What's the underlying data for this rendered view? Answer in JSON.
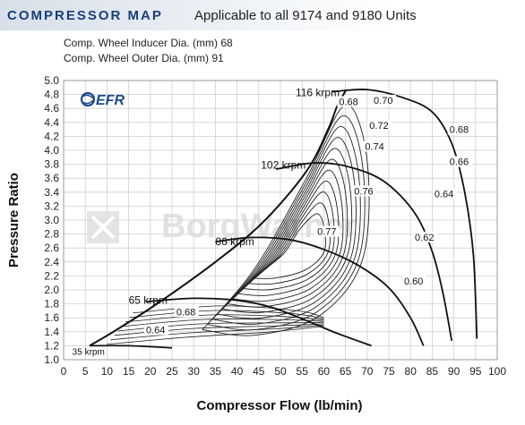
{
  "header": {
    "title": "COMPRESSOR MAP",
    "applicability": "Applicable to all 9174 and 9180 Units"
  },
  "specs": [
    "Comp. Wheel Inducer Dia. (mm) 68",
    "Comp. Wheel Outer Dia. (mm) 91"
  ],
  "logo_text": "EFR",
  "watermark_text": "BorgWarner",
  "colors": {
    "brand": "#1a3f7a",
    "line": "#111111",
    "grid": "#cfcfcf",
    "logo": "#1f4a8c"
  },
  "chart_data": {
    "type": "line",
    "title": "",
    "xlabel": "Compressor Flow (lb/min)",
    "ylabel": "Pressure Ratio",
    "xlim": [
      0,
      100
    ],
    "ylim": [
      1.0,
      5.0
    ],
    "xticks": [
      "0",
      "5",
      "10",
      "15",
      "20",
      "25",
      "30",
      "35",
      "40",
      "45",
      "50",
      "55",
      "60",
      "65",
      "70",
      "75",
      "80",
      "85",
      "90",
      "95",
      "100"
    ],
    "yticks": [
      "1.0",
      "1.2",
      "1.4",
      "1.6",
      "1.8",
      "2.0",
      "2.2",
      "2.4",
      "2.6",
      "2.8",
      "3.0",
      "3.2",
      "3.4",
      "3.6",
      "3.8",
      "4.0",
      "4.2",
      "4.4",
      "4.6",
      "4.8",
      "5.0"
    ],
    "grid": true,
    "surge_line": [
      [
        6,
        1.2
      ],
      [
        12,
        1.42
      ],
      [
        22,
        1.82
      ],
      [
        35,
        2.4
      ],
      [
        46,
        2.97
      ],
      [
        56,
        3.7
      ],
      [
        61,
        4.3
      ],
      [
        63,
        4.62
      ],
      [
        65,
        4.85
      ]
    ],
    "speed_lines": [
      {
        "label": "35 krpm",
        "label_at": [
          2,
          1.12
        ],
        "points": [
          [
            6,
            1.2
          ],
          [
            15,
            1.2
          ],
          [
            25,
            1.17
          ]
        ]
      },
      {
        "label": "65 krpm",
        "label_at": [
          15,
          1.85
        ],
        "points": [
          [
            19,
            1.83
          ],
          [
            30,
            1.88
          ],
          [
            40,
            1.85
          ],
          [
            48,
            1.75
          ],
          [
            56,
            1.56
          ],
          [
            63,
            1.38
          ],
          [
            71,
            1.2
          ]
        ]
      },
      {
        "label": "86 krpm",
        "label_at": [
          35,
          2.69
        ],
        "points": [
          [
            35,
            2.69
          ],
          [
            43,
            2.75
          ],
          [
            52,
            2.72
          ],
          [
            60,
            2.58
          ],
          [
            68,
            2.35
          ],
          [
            75,
            2.03
          ],
          [
            80,
            1.6
          ],
          [
            83,
            1.2
          ]
        ]
      },
      {
        "label": "102 krpm",
        "label_at": [
          45.5,
          3.79
        ],
        "points": [
          [
            49,
            3.73
          ],
          [
            58,
            3.82
          ],
          [
            66,
            3.76
          ],
          [
            74,
            3.55
          ],
          [
            81,
            3.1
          ],
          [
            85,
            2.55
          ],
          [
            87.5,
            1.95
          ],
          [
            89.5,
            1.27
          ]
        ]
      },
      {
        "label": "116 krpm",
        "label_at": [
          53.5,
          4.83
        ],
        "points": [
          [
            62,
            4.84
          ],
          [
            70,
            4.87
          ],
          [
            78,
            4.76
          ],
          [
            85,
            4.55
          ],
          [
            89.5,
            4.1
          ],
          [
            92.5,
            3.4
          ],
          [
            94.5,
            2.5
          ],
          [
            95.3,
            1.3
          ]
        ]
      }
    ],
    "efficiency_labels": [
      {
        "label": "0.68",
        "at": [
          63.5,
          4.66
        ]
      },
      {
        "label": "0.70",
        "at": [
          71.5,
          4.68
        ]
      },
      {
        "label": "0.72",
        "at": [
          70.5,
          4.32
        ]
      },
      {
        "label": "0.74",
        "at": [
          69.5,
          4.02
        ]
      },
      {
        "label": "0.76",
        "at": [
          67,
          3.38
        ]
      },
      {
        "label": "0.77",
        "at": [
          58.5,
          2.8
        ]
      },
      {
        "label": "0.68",
        "at": [
          89,
          4.26
        ]
      },
      {
        "label": "0.66",
        "at": [
          89,
          3.8
        ]
      },
      {
        "label": "0.64",
        "at": [
          85.5,
          3.34
        ]
      },
      {
        "label": "0.62",
        "at": [
          81,
          2.72
        ]
      },
      {
        "label": "0.60",
        "at": [
          78.5,
          2.09
        ]
      },
      {
        "label": "0.68",
        "at": [
          26,
          1.65
        ]
      },
      {
        "label": "0.64",
        "at": [
          19,
          1.39
        ]
      }
    ]
  }
}
